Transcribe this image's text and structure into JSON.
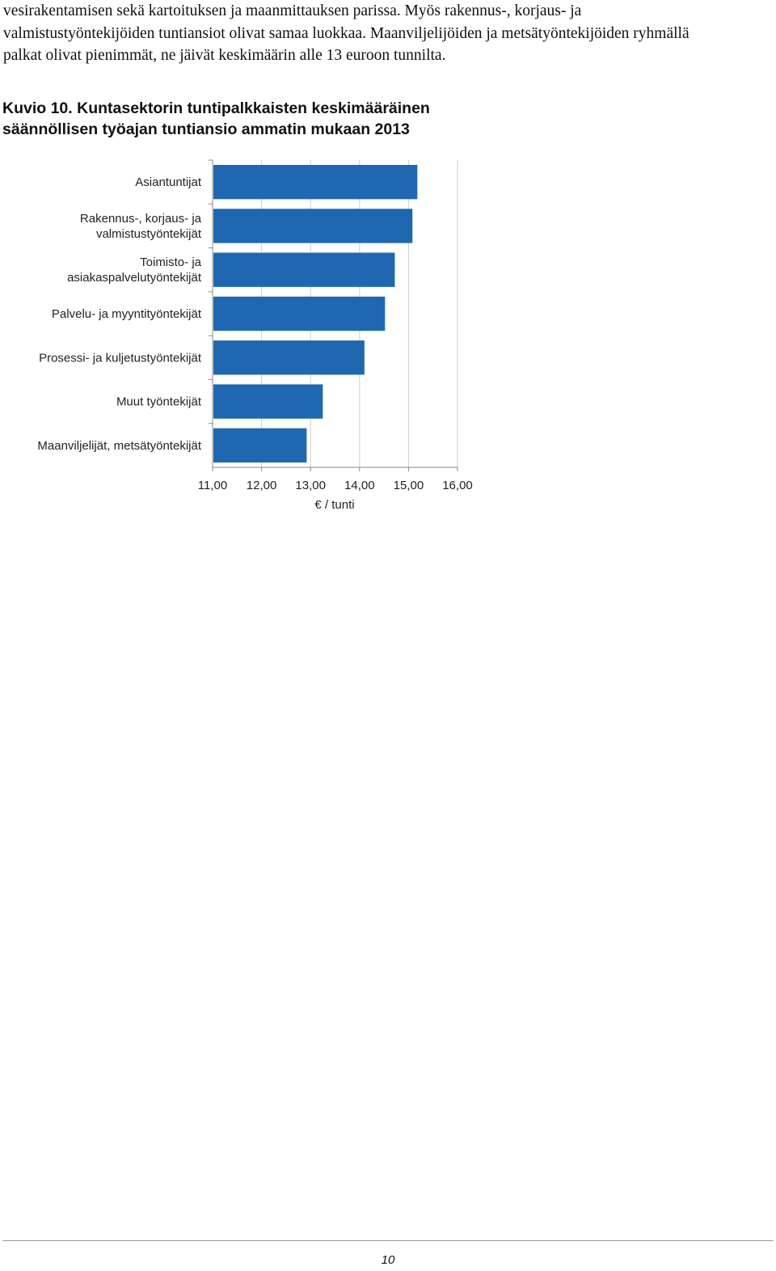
{
  "paragraph": {
    "lines": [
      "vesirakentamisen sekä kartoituksen ja maanmittauksen parissa. Myös rakennus-, korjaus- ja",
      "valmistustyöntekijöiden tuntiansiot olivat samaa luokkaa. Maanviljelijöiden ja metsätyöntekijöiden ryhmällä",
      "palkat olivat pienimmät, ne jäivät keskimäärin alle 13 euroon tunnilta."
    ]
  },
  "figure": {
    "caption_lines": [
      "Kuvio 10. Kuntasektorin tuntipalkkaisten keskimääräinen",
      "säännöllisen työajan tuntiansio ammatin mukaan 2013"
    ]
  },
  "chart_data": {
    "type": "bar",
    "orientation": "horizontal",
    "categories": [
      [
        "Asiantuntijat"
      ],
      [
        "Rakennus-, korjaus- ja",
        "valmistustyöntekijät"
      ],
      [
        "Toimisto- ja",
        "asiakaspalvelutyöntekijät"
      ],
      [
        "Palvelu- ja myyntityöntekijät"
      ],
      [
        "Prosessi- ja kuljetustyöntekijät"
      ],
      [
        "Muut työntekijät"
      ],
      [
        "Maanviljelijät, metsätyöntekijät"
      ]
    ],
    "values": [
      15.18,
      15.08,
      14.72,
      14.52,
      14.1,
      13.25,
      12.92
    ],
    "xlim": [
      11,
      16
    ],
    "xticks": [
      "11,00",
      "12,00",
      "13,00",
      "14,00",
      "15,00",
      "16,00"
    ],
    "xlabel": "€ / tunti",
    "ylabel": "",
    "grid": true,
    "bar_color": "#1f68b1",
    "grid_color": "#cfcfcf"
  },
  "footer": {
    "page_number": "10"
  }
}
